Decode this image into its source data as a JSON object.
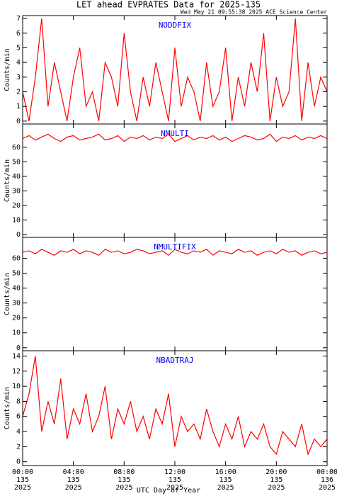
{
  "chart_data": [
    {
      "type": "line",
      "title": "LET ahead EVPRATES Data for 2025-135",
      "subtitle": "Wed May 21 09:55:38 2025 ACE Science Center",
      "name": "NODDFIX",
      "ylabel": "Counts/min",
      "color": "#ff0000",
      "x": [
        0,
        0.5,
        1,
        1.5,
        2,
        2.5,
        3,
        3.5,
        4,
        4.5,
        5,
        5.5,
        6,
        6.5,
        7,
        7.5,
        8,
        8.5,
        9,
        9.5,
        10,
        10.5,
        11,
        11.5,
        12,
        12.5,
        13,
        13.5,
        14,
        14.5,
        15,
        15.5,
        16,
        16.5,
        17,
        17.5,
        18,
        18.5,
        19,
        19.5,
        20,
        20.5,
        21,
        21.5,
        22,
        22.5,
        23,
        23.5,
        24
      ],
      "values": [
        2,
        0,
        3,
        7,
        1,
        4,
        2,
        0,
        3,
        5,
        1,
        2,
        0,
        4,
        3,
        1,
        6,
        2,
        0,
        3,
        1,
        4,
        2,
        0,
        5,
        1,
        3,
        2,
        0,
        4,
        1,
        2,
        5,
        0,
        3,
        1,
        4,
        2,
        6,
        0,
        3,
        1,
        2,
        7,
        0,
        4,
        1,
        3,
        2
      ],
      "ylim": [
        -0.2,
        7.2
      ],
      "yticks": [
        0,
        1,
        2,
        3,
        4,
        5,
        6,
        7
      ]
    },
    {
      "type": "line",
      "name": "NMULTI",
      "ylabel": "Counts/min",
      "color": "#ff0000",
      "x": [
        0,
        0.5,
        1,
        1.5,
        2,
        2.5,
        3,
        3.5,
        4,
        4.5,
        5,
        5.5,
        6,
        6.5,
        7,
        7.5,
        8,
        8.5,
        9,
        9.5,
        10,
        10.5,
        11,
        11.5,
        12,
        12.5,
        13,
        13.5,
        14,
        14.5,
        15,
        15.5,
        16,
        16.5,
        17,
        17.5,
        18,
        18.5,
        19,
        19.5,
        20,
        20.5,
        21,
        21.5,
        22,
        22.5,
        23,
        23.5,
        24
      ],
      "values": [
        66,
        68,
        65,
        67,
        69,
        66,
        64,
        67,
        68,
        65,
        66,
        67,
        69,
        65,
        66,
        68,
        64,
        67,
        66,
        68,
        65,
        67,
        66,
        69,
        64,
        66,
        68,
        65,
        67,
        66,
        68,
        65,
        67,
        64,
        66,
        68,
        67,
        65,
        66,
        69,
        64,
        67,
        66,
        68,
        65,
        67,
        66,
        68,
        66
      ],
      "ylim": [
        -2,
        76
      ],
      "yticks": [
        0,
        10,
        20,
        30,
        40,
        50,
        60
      ]
    },
    {
      "type": "line",
      "name": "NMULTIFIX",
      "ylabel": "Counts/min",
      "color": "#ff0000",
      "x": [
        0,
        0.5,
        1,
        1.5,
        2,
        2.5,
        3,
        3.5,
        4,
        4.5,
        5,
        5.5,
        6,
        6.5,
        7,
        7.5,
        8,
        8.5,
        9,
        9.5,
        10,
        10.5,
        11,
        11.5,
        12,
        12.5,
        13,
        13.5,
        14,
        14.5,
        15,
        15.5,
        16,
        16.5,
        17,
        17.5,
        18,
        18.5,
        19,
        19.5,
        20,
        20.5,
        21,
        21.5,
        22,
        22.5,
        23,
        23.5,
        24
      ],
      "values": [
        64,
        65,
        63,
        66,
        64,
        62,
        65,
        64,
        66,
        63,
        65,
        64,
        62,
        66,
        64,
        65,
        63,
        64,
        66,
        65,
        63,
        64,
        65,
        62,
        66,
        64,
        63,
        65,
        64,
        66,
        62,
        65,
        64,
        63,
        66,
        64,
        65,
        62,
        64,
        65,
        63,
        66,
        64,
        65,
        62,
        64,
        65,
        63,
        64
      ],
      "ylim": [
        -2,
        74
      ],
      "yticks": [
        0,
        10,
        20,
        30,
        40,
        50,
        60
      ]
    },
    {
      "type": "line",
      "name": "NBADTRAJ",
      "ylabel": "Counts/min",
      "color": "#ff0000",
      "xlabel": "UTC Day of Year",
      "x": [
        0,
        0.5,
        1,
        1.5,
        2,
        2.5,
        3,
        3.5,
        4,
        4.5,
        5,
        5.5,
        6,
        6.5,
        7,
        7.5,
        8,
        8.5,
        9,
        9.5,
        10,
        10.5,
        11,
        11.5,
        12,
        12.5,
        13,
        13.5,
        14,
        14.5,
        15,
        15.5,
        16,
        16.5,
        17,
        17.5,
        18,
        18.5,
        19,
        19.5,
        20,
        20.5,
        21,
        21.5,
        22,
        22.5,
        23,
        23.5,
        24
      ],
      "values": [
        6,
        9,
        14,
        4,
        8,
        5,
        11,
        3,
        7,
        5,
        9,
        4,
        6,
        10,
        3,
        7,
        5,
        8,
        4,
        6,
        3,
        7,
        5,
        9,
        2,
        6,
        4,
        5,
        3,
        7,
        4,
        2,
        5,
        3,
        6,
        2,
        4,
        3,
        5,
        2,
        1,
        4,
        3,
        2,
        5,
        1,
        3,
        2,
        3
      ],
      "ylim": [
        -0.5,
        14.7
      ],
      "yticks": [
        0,
        2,
        4,
        6,
        8,
        10,
        12,
        14
      ],
      "xlim": [
        0,
        24
      ],
      "xticks": [
        {
          "value": 0,
          "label": [
            "00:00",
            "135",
            "2025"
          ]
        },
        {
          "value": 4,
          "label": [
            "04:00",
            "135",
            "2025"
          ]
        },
        {
          "value": 8,
          "label": [
            "08:00",
            "135",
            "2025"
          ]
        },
        {
          "value": 12,
          "label": [
            "12:00",
            "135",
            "2025"
          ]
        },
        {
          "value": 16,
          "label": [
            "16:00",
            "135",
            "2025"
          ]
        },
        {
          "value": 20,
          "label": [
            "20:00",
            "135",
            "2025"
          ]
        },
        {
          "value": 24,
          "label": [
            "00:00",
            "136",
            "2025"
          ]
        }
      ]
    }
  ]
}
